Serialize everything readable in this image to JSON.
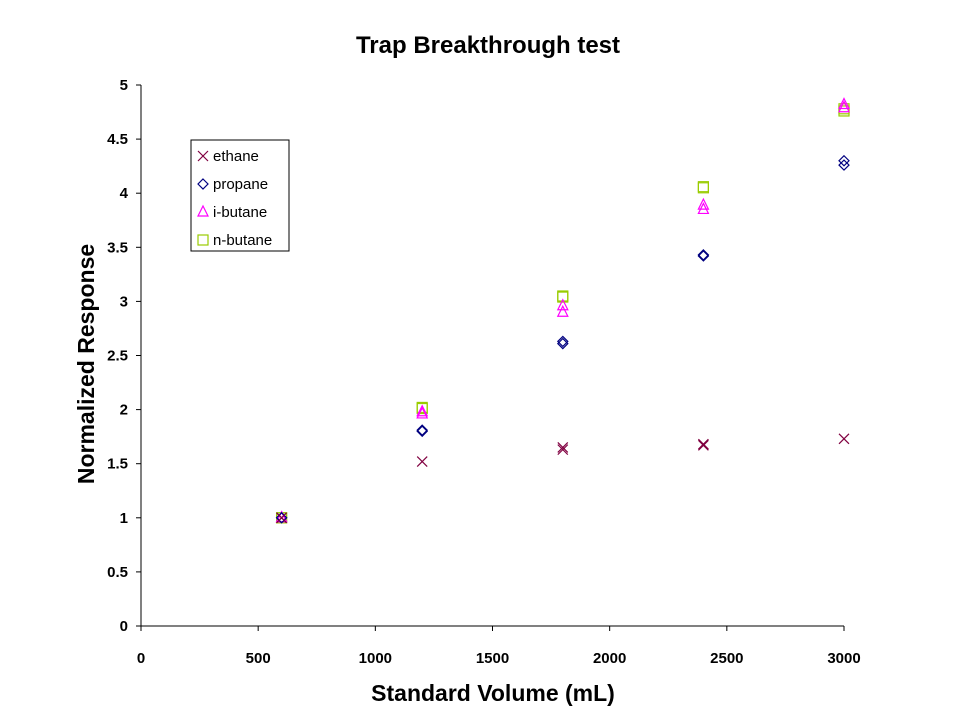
{
  "chart_data": {
    "type": "scatter",
    "title": "Trap Breakthrough test",
    "xlabel": "Standard Volume (mL)",
    "ylabel": "Normalized Response",
    "xlim": [
      0,
      3000
    ],
    "ylim": [
      0,
      5
    ],
    "xticks": [
      "0",
      "500",
      "1000",
      "1500",
      "2000",
      "2500",
      "3000"
    ],
    "yticks": [
      "0",
      "0.5",
      "1",
      "1.5",
      "2",
      "2.5",
      "3",
      "3.5",
      "4",
      "4.5",
      "5"
    ],
    "legend_position": "top-left",
    "grid": false,
    "series": [
      {
        "name": "ethane",
        "marker": "x",
        "color": "#800040",
        "points": [
          [
            600,
            1.0
          ],
          [
            600,
            1.0
          ],
          [
            1200,
            1.52
          ],
          [
            1800,
            1.63
          ],
          [
            1800,
            1.65
          ],
          [
            2400,
            1.67
          ],
          [
            2400,
            1.68
          ],
          [
            3000,
            1.73
          ]
        ]
      },
      {
        "name": "propane",
        "marker": "diamond",
        "color": "#000080",
        "points": [
          [
            600,
            1.0
          ],
          [
            600,
            1.0
          ],
          [
            1200,
            1.8
          ],
          [
            1200,
            1.81
          ],
          [
            1800,
            2.61
          ],
          [
            1800,
            2.63
          ],
          [
            2400,
            3.42
          ],
          [
            2400,
            3.43
          ],
          [
            3000,
            4.26
          ],
          [
            3000,
            4.3
          ]
        ]
      },
      {
        "name": "i-butane",
        "marker": "triangle",
        "color": "#ff00ff",
        "points": [
          [
            600,
            1.0
          ],
          [
            600,
            1.0
          ],
          [
            1200,
            1.96
          ],
          [
            1200,
            1.98
          ],
          [
            1800,
            2.9
          ],
          [
            1800,
            2.96
          ],
          [
            2400,
            3.85
          ],
          [
            2400,
            3.89
          ],
          [
            3000,
            4.79
          ],
          [
            3000,
            4.82
          ]
        ]
      },
      {
        "name": "n-butane",
        "marker": "square",
        "color": "#99cc00",
        "points": [
          [
            600,
            1.0
          ],
          [
            600,
            1.0
          ],
          [
            1200,
            2.01
          ],
          [
            1200,
            2.02
          ],
          [
            1800,
            3.04
          ],
          [
            1800,
            3.05
          ],
          [
            2400,
            4.05
          ],
          [
            2400,
            4.06
          ],
          [
            3000,
            4.76
          ],
          [
            3000,
            4.78
          ]
        ]
      }
    ]
  }
}
